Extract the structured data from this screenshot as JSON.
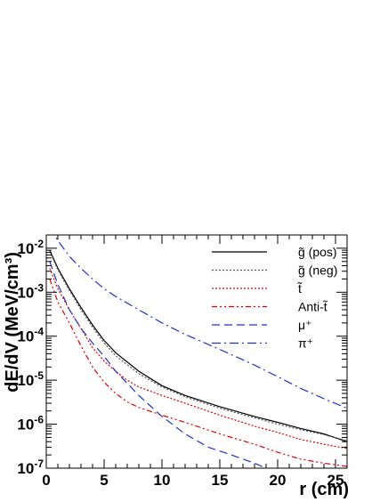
{
  "chart_data": {
    "type": "line",
    "xlabel": "r (cm)",
    "ylabel": "dE/dV (MeV/cm³)",
    "xlim": [
      0,
      26
    ],
    "ylim": [
      1e-07,
      0.02
    ],
    "yscale": "log",
    "grid": false,
    "legend_position": "top-right",
    "x_ticks": [
      "0",
      "5",
      "10",
      "15",
      "20",
      "25"
    ],
    "y_ticks": [
      {
        "value": 0.01,
        "mant": "10",
        "exp": "-2"
      },
      {
        "value": 0.001,
        "mant": "10",
        "exp": "-3"
      },
      {
        "value": 0.0001,
        "mant": "10",
        "exp": "-4"
      },
      {
        "value": 1e-05,
        "mant": "10",
        "exp": "-5"
      },
      {
        "value": 1e-06,
        "mant": "10",
        "exp": "-6"
      },
      {
        "value": 1e-07,
        "mant": "10",
        "exp": "-7"
      }
    ],
    "series": [
      {
        "name": "g̃ (pos)",
        "color": "#000000",
        "dash": "solid",
        "x": [
          0.3,
          1,
          2,
          3,
          4,
          5,
          6,
          8,
          10,
          12,
          15,
          18,
          20,
          22,
          24,
          26
        ],
        "y": [
          0.009,
          0.0035,
          0.0012,
          0.00045,
          0.00018,
          8e-05,
          4.2e-05,
          1.6e-05,
          7.5e-06,
          4.5e-06,
          2.5e-06,
          1.5e-06,
          1.1e-06,
          8e-07,
          6e-07,
          4e-07
        ]
      },
      {
        "name": "g̃ (neg)",
        "color": "#555555",
        "dash": "dotted",
        "x": [
          0.3,
          1,
          2,
          3,
          4,
          5,
          6,
          8,
          10,
          12,
          15,
          18,
          20,
          22,
          24,
          26
        ],
        "y": [
          0.0085,
          0.0032,
          0.0011,
          0.0004,
          0.00016,
          7e-05,
          3.6e-05,
          1.4e-05,
          7e-06,
          4.2e-06,
          2.3e-06,
          1.4e-06,
          1e-06,
          7.5e-07,
          5.8e-07,
          4.2e-07
        ]
      },
      {
        "name": "t̃",
        "color": "#dd0000",
        "dash": "dotted",
        "x": [
          0.3,
          1,
          2,
          3,
          4,
          5,
          6,
          7,
          8,
          10,
          12,
          15,
          18,
          20,
          22,
          24,
          26
        ],
        "y": [
          0.0035,
          0.0012,
          0.0004,
          0.00015,
          5.5e-05,
          2.7e-05,
          1.6e-05,
          1e-05,
          7e-06,
          4.5e-06,
          3e-06,
          1.6e-06,
          9e-07,
          6.5e-07,
          4.5e-07,
          3.5e-07,
          2.8e-07
        ]
      },
      {
        "name": "Anti-t̃",
        "color": "#dd0000",
        "dash": "dashdotdot",
        "x": [
          0.3,
          1,
          2,
          3,
          4,
          5,
          6,
          7,
          8,
          10,
          12,
          15,
          18,
          20,
          22,
          24,
          26
        ],
        "y": [
          0.002,
          0.0006,
          0.0002,
          6e-05,
          2e-05,
          9e-06,
          5e-06,
          3.2e-06,
          2.4e-06,
          1.6e-06,
          1.1e-06,
          6e-07,
          3.5e-07,
          2.3e-07,
          1.6e-07,
          1.3e-07,
          1.1e-07
        ]
      },
      {
        "name": "μ⁺",
        "color": "#2233cc",
        "dash": "dashed",
        "x": [
          0.3,
          1,
          2,
          3,
          4,
          5,
          6,
          8,
          10,
          12,
          14,
          16,
          18,
          19
        ],
        "y": [
          0.005,
          0.0015,
          0.0004,
          0.00015,
          7e-05,
          3.5e-05,
          1.6e-05,
          4.5e-06,
          1.5e-06,
          6e-07,
          3e-07,
          2e-07,
          1.3e-07,
          1e-07
        ]
      },
      {
        "name": "π⁺",
        "color": "#2233cc",
        "dash": "dashdot",
        "x": [
          0.3,
          1,
          2,
          3,
          4,
          5,
          6,
          8,
          10,
          12,
          15,
          18,
          20,
          22,
          24,
          26
        ],
        "y": [
          0.03,
          0.015,
          0.0065,
          0.0035,
          0.002,
          0.0012,
          0.0008,
          0.0004,
          0.0002,
          0.00011,
          5e-05,
          2.2e-05,
          1.2e-05,
          6.5e-06,
          3.8e-06,
          2.3e-06
        ]
      }
    ]
  }
}
